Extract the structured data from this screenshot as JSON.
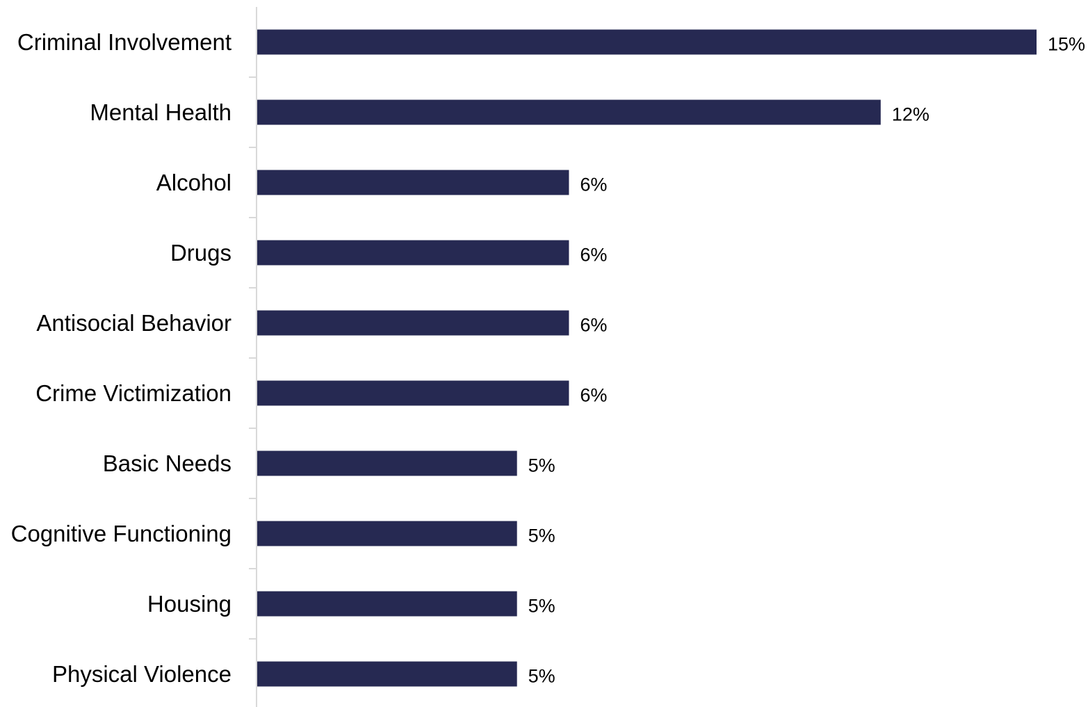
{
  "chart_data": {
    "type": "bar",
    "orientation": "horizontal",
    "title": "",
    "xlabel": "",
    "ylabel": "",
    "categories": [
      "Criminal Involvement",
      "Mental Health",
      "Alcohol",
      "Drugs",
      "Antisocial Behavior",
      "Crime Victimization",
      "Basic Needs",
      "Cognitive Functioning",
      "Housing",
      "Physical Violence"
    ],
    "values": [
      15,
      12,
      6,
      6,
      6,
      6,
      5,
      5,
      5,
      5
    ],
    "value_labels": [
      "15%",
      "12%",
      "6%",
      "6%",
      "6%",
      "6%",
      "5%",
      "5%",
      "5%",
      "5%"
    ],
    "xlim": [
      0,
      15
    ],
    "grid": false,
    "legend": "none",
    "bar_color": "#262952",
    "axis_color": "#d9d9d9"
  }
}
